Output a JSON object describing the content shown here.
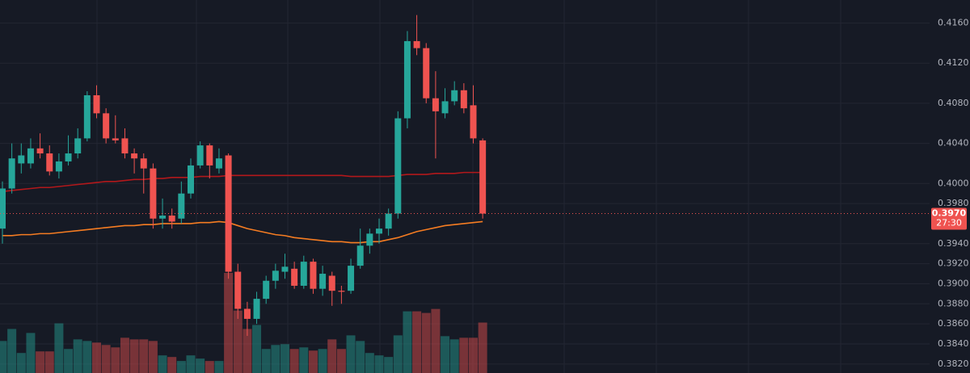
{
  "chart_data": {
    "type": "candlestick",
    "categories": [
      null,
      null,
      null,
      null,
      null,
      null,
      null,
      null,
      null,
      null,
      null,
      null,
      null,
      null,
      null,
      null,
      null,
      null,
      null,
      null,
      null,
      null,
      null,
      null,
      null,
      null,
      null,
      null,
      null,
      null,
      null,
      null,
      null,
      null,
      null,
      null,
      null,
      null,
      null,
      null,
      null,
      null,
      null,
      null,
      null,
      null,
      null,
      null,
      null,
      null,
      null,
      null
    ],
    "open": [
      0.3955,
      0.3995,
      0.402,
      0.402,
      0.4035,
      0.403,
      0.4012,
      0.4022,
      0.403,
      0.4045,
      0.4088,
      0.407,
      0.4045,
      0.4045,
      0.403,
      0.4025,
      0.4015,
      0.3965,
      0.3968,
      0.3965,
      0.399,
      0.4018,
      0.4038,
      0.4015,
      0.4028,
      0.3912,
      0.3875,
      0.3865,
      0.3885,
      0.3903,
      0.3912,
      0.3915,
      0.3898,
      0.3922,
      0.3895,
      0.3908,
      0.3893,
      0.3893,
      0.3918,
      0.3938,
      0.395,
      0.3955,
      0.397,
      0.4065,
      0.4142,
      0.4135,
      0.4085,
      0.407,
      0.4082,
      0.4093,
      0.4078,
      0.4043
    ],
    "high": [
      0.4002,
      0.404,
      0.404,
      0.4045,
      0.405,
      0.4038,
      0.403,
      0.4048,
      0.4055,
      0.4092,
      0.4098,
      0.4075,
      0.4068,
      0.4055,
      0.4035,
      0.403,
      0.402,
      0.3985,
      0.3975,
      0.4002,
      0.4025,
      0.4042,
      0.404,
      0.4035,
      0.403,
      0.392,
      0.3882,
      0.3892,
      0.3908,
      0.392,
      0.393,
      0.3922,
      0.3928,
      0.3925,
      0.3918,
      0.3912,
      0.3898,
      0.3925,
      0.3955,
      0.3955,
      0.3965,
      0.3975,
      0.4072,
      0.4152,
      0.4168,
      0.414,
      0.4112,
      0.4095,
      0.4102,
      0.41,
      0.4098,
      0.4045
    ],
    "low": [
      0.394,
      0.399,
      0.401,
      0.4015,
      0.4025,
      0.4008,
      0.4005,
      0.4018,
      0.4025,
      0.4042,
      0.4065,
      0.404,
      0.404,
      0.4025,
      0.401,
      0.399,
      0.3955,
      0.3955,
      0.3955,
      0.396,
      0.3985,
      0.4015,
      0.4005,
      0.401,
      0.3905,
      0.3865,
      0.3848,
      0.386,
      0.388,
      0.3895,
      0.3905,
      0.3895,
      0.3895,
      0.389,
      0.3888,
      0.3878,
      0.388,
      0.389,
      0.3915,
      0.393,
      0.394,
      0.3948,
      0.3965,
      0.4055,
      0.4128,
      0.408,
      0.4025,
      0.4065,
      0.4078,
      0.407,
      0.404,
      0.3965
    ],
    "close": [
      0.3995,
      0.4025,
      0.4028,
      0.4035,
      0.403,
      0.4012,
      0.4022,
      0.403,
      0.4045,
      0.4088,
      0.407,
      0.4045,
      0.4043,
      0.403,
      0.4025,
      0.4015,
      0.3965,
      0.3968,
      0.3962,
      0.399,
      0.4018,
      0.4038,
      0.4018,
      0.4025,
      0.3912,
      0.3875,
      0.3865,
      0.3885,
      0.3903,
      0.3913,
      0.3917,
      0.3898,
      0.3922,
      0.3895,
      0.391,
      0.3893,
      0.3892,
      0.3918,
      0.3938,
      0.395,
      0.3955,
      0.397,
      0.4065,
      0.4142,
      0.4135,
      0.4085,
      0.4072,
      0.4082,
      0.4093,
      0.4075,
      0.4045,
      0.397
    ],
    "volume": [
      40,
      55,
      25,
      50,
      27,
      27,
      62,
      30,
      42,
      40,
      38,
      35,
      32,
      44,
      42,
      42,
      40,
      22,
      20,
      15,
      22,
      18,
      15,
      15,
      125,
      78,
      55,
      60,
      30,
      35,
      36,
      30,
      32,
      28,
      30,
      42,
      30,
      47,
      40,
      25,
      22,
      20,
      47,
      77,
      77,
      75,
      80,
      46,
      42,
      44,
      44,
      63
    ],
    "lines": [
      {
        "color": "#b2181b",
        "values": [
          0.3992,
          0.3993,
          0.3994,
          0.3995,
          0.3996,
          0.3996,
          0.3997,
          0.3998,
          0.3999,
          0.4,
          0.4001,
          0.4002,
          0.4002,
          0.4003,
          0.4004,
          0.4004,
          0.4005,
          0.4005,
          0.4006,
          0.4006,
          0.4006,
          0.4007,
          0.4007,
          0.4007,
          0.4008,
          0.4008,
          0.4008,
          0.4008,
          0.4008,
          0.4008,
          0.4008,
          0.4008,
          0.4008,
          0.4008,
          0.4008,
          0.4008,
          0.4008,
          0.4007,
          0.4007,
          0.4007,
          0.4007,
          0.4007,
          0.4008,
          0.4009,
          0.4009,
          0.4009,
          0.401,
          0.401,
          0.401,
          0.4011,
          0.4011,
          0.4011
        ]
      },
      {
        "color": "#f57c22",
        "values": [
          0.3948,
          0.3948,
          0.3949,
          0.3949,
          0.395,
          0.395,
          0.3951,
          0.3952,
          0.3953,
          0.3954,
          0.3955,
          0.3956,
          0.3957,
          0.3958,
          0.3958,
          0.3959,
          0.3959,
          0.396,
          0.396,
          0.396,
          0.396,
          0.3961,
          0.3961,
          0.3962,
          0.3961,
          0.3958,
          0.3955,
          0.3953,
          0.3951,
          0.3949,
          0.3948,
          0.3946,
          0.3945,
          0.3944,
          0.3943,
          0.3942,
          0.3942,
          0.3941,
          0.3941,
          0.3942,
          0.3942,
          0.3944,
          0.3946,
          0.3949,
          0.3952,
          0.3954,
          0.3956,
          0.3958,
          0.3959,
          0.396,
          0.3961,
          0.3962
        ]
      }
    ],
    "up_color": "#26a69a",
    "down_color": "#ef5350",
    "ylim": [
      0.3811,
      0.4183
    ],
    "yticks": [
      {
        "value": 0.416,
        "label": "0.4160"
      },
      {
        "value": 0.412,
        "label": "0.4120"
      },
      {
        "value": 0.408,
        "label": "0.4080"
      },
      {
        "value": 0.404,
        "label": "0.4040"
      },
      {
        "value": 0.4,
        "label": "0.4000"
      },
      {
        "value": 0.398,
        "label": "0.3980"
      },
      {
        "value": 0.394,
        "label": "0.3940"
      },
      {
        "value": 0.392,
        "label": "0.3920"
      },
      {
        "value": 0.39,
        "label": "0.3900"
      },
      {
        "value": 0.388,
        "label": "0.3880"
      },
      {
        "value": 0.386,
        "label": "0.3860"
      },
      {
        "value": 0.384,
        "label": "0.3840"
      },
      {
        "value": 0.382,
        "label": "0.3820"
      }
    ],
    "grid": true,
    "last_price": {
      "value": 0.397,
      "label": "0.3970"
    },
    "countdown": "27:30"
  }
}
